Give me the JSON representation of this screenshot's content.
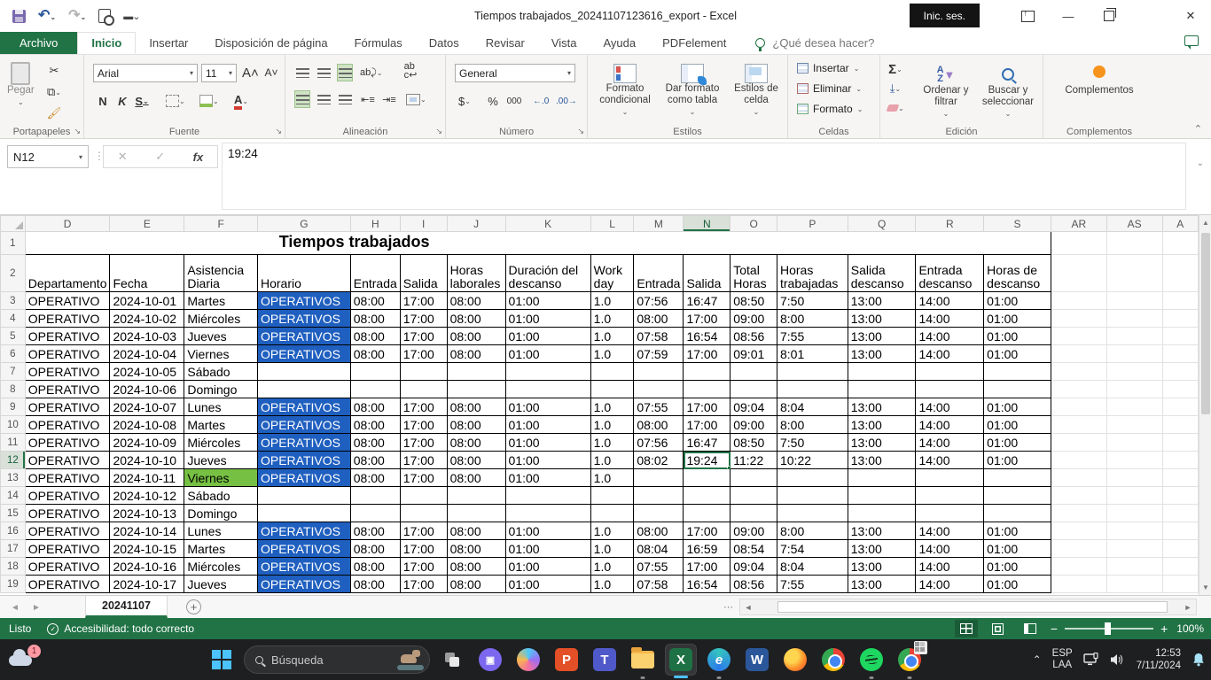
{
  "window": {
    "title": "Tiempos trabajados_20241107123616_export  -  Excel",
    "sign_in": "Inic. ses."
  },
  "ribbon": {
    "tabs": [
      "Archivo",
      "Inicio",
      "Insertar",
      "Disposición de página",
      "Fórmulas",
      "Datos",
      "Revisar",
      "Vista",
      "Ayuda",
      "PDFelement"
    ],
    "active_tab": "Inicio",
    "search_hint": "¿Qué desea hacer?",
    "font_name": "Arial",
    "font_size": "11",
    "number_format": "General",
    "buttons": {
      "paste": "Pegar",
      "conditional_format": "Formato condicional",
      "format_as_table": "Dar formato como tabla",
      "cell_styles": "Estilos de celda",
      "insert": "Insertar",
      "delete": "Eliminar",
      "format": "Formato",
      "sort_filter": "Ordenar y filtrar",
      "find_select": "Buscar y seleccionar",
      "addins": "Complementos"
    },
    "groups": [
      "Portapapeles",
      "Fuente",
      "Alineación",
      "Número",
      "Estilos",
      "Celdas",
      "Edición",
      "Complementos"
    ]
  },
  "formula_bar": {
    "name_box": "N12",
    "value": "19:24"
  },
  "sheet": {
    "columns": [
      "D",
      "E",
      "F",
      "G",
      "H",
      "I",
      "J",
      "K",
      "L",
      "M",
      "N",
      "O",
      "P",
      "Q",
      "R",
      "S",
      "AR",
      "AS",
      "A"
    ],
    "selected_column": "N",
    "selected_row": 12,
    "selected_cell": "N12",
    "title": "Tiempos trabajados",
    "headers": [
      "Departamento",
      "Fecha",
      "Asistencia\nDiaria",
      "Horario",
      "Entrada",
      "Salida",
      "Horas\nlaborales",
      "Duración del\ndescanso",
      "Work\nday",
      "Entrada",
      "Salida",
      "Total\nHoras",
      "Horas\ntrabajadas",
      "Salida\ndescanso",
      "Entrada\ndescanso",
      "Horas de\ndescanso"
    ],
    "highlight": {
      "row": 13,
      "column": "F",
      "value": "Viernes"
    },
    "rows": [
      {
        "n": 3,
        "cells": [
          "OPERATIVO",
          "2024-10-01",
          "Martes",
          "OPERATIVOS",
          "08:00",
          "17:00",
          "08:00",
          "01:00",
          "1.0",
          "07:56",
          "16:47",
          "08:50",
          "7:50",
          "13:00",
          "14:00",
          "01:00"
        ]
      },
      {
        "n": 4,
        "cells": [
          "OPERATIVO",
          "2024-10-02",
          "Miércoles",
          "OPERATIVOS",
          "08:00",
          "17:00",
          "08:00",
          "01:00",
          "1.0",
          "08:00",
          "17:00",
          "09:00",
          "8:00",
          "13:00",
          "14:00",
          "01:00"
        ]
      },
      {
        "n": 5,
        "cells": [
          "OPERATIVO",
          "2024-10-03",
          "Jueves",
          "OPERATIVOS",
          "08:00",
          "17:00",
          "08:00",
          "01:00",
          "1.0",
          "07:58",
          "16:54",
          "08:56",
          "7:55",
          "13:00",
          "14:00",
          "01:00"
        ]
      },
      {
        "n": 6,
        "cells": [
          "OPERATIVO",
          "2024-10-04",
          "Viernes",
          "OPERATIVOS",
          "08:00",
          "17:00",
          "08:00",
          "01:00",
          "1.0",
          "07:59",
          "17:00",
          "09:01",
          "8:01",
          "13:00",
          "14:00",
          "01:00"
        ]
      },
      {
        "n": 7,
        "cells": [
          "OPERATIVO",
          "2024-10-05",
          "Sábado",
          "",
          "",
          "",
          "",
          "",
          "",
          "",
          "",
          "",
          "",
          "",
          "",
          ""
        ]
      },
      {
        "n": 8,
        "cells": [
          "OPERATIVO",
          "2024-10-06",
          "Domingo",
          "",
          "",
          "",
          "",
          "",
          "",
          "",
          "",
          "",
          "",
          "",
          "",
          ""
        ]
      },
      {
        "n": 9,
        "cells": [
          "OPERATIVO",
          "2024-10-07",
          "Lunes",
          "OPERATIVOS",
          "08:00",
          "17:00",
          "08:00",
          "01:00",
          "1.0",
          "07:55",
          "17:00",
          "09:04",
          "8:04",
          "13:00",
          "14:00",
          "01:00"
        ]
      },
      {
        "n": 10,
        "cells": [
          "OPERATIVO",
          "2024-10-08",
          "Martes",
          "OPERATIVOS",
          "08:00",
          "17:00",
          "08:00",
          "01:00",
          "1.0",
          "08:00",
          "17:00",
          "09:00",
          "8:00",
          "13:00",
          "14:00",
          "01:00"
        ]
      },
      {
        "n": 11,
        "cells": [
          "OPERATIVO",
          "2024-10-09",
          "Miércoles",
          "OPERATIVOS",
          "08:00",
          "17:00",
          "08:00",
          "01:00",
          "1.0",
          "07:56",
          "16:47",
          "08:50",
          "7:50",
          "13:00",
          "14:00",
          "01:00"
        ]
      },
      {
        "n": 12,
        "cells": [
          "OPERATIVO",
          "2024-10-10",
          "Jueves",
          "OPERATIVOS",
          "08:00",
          "17:00",
          "08:00",
          "01:00",
          "1.0",
          "08:02",
          "19:24",
          "11:22",
          "10:22",
          "13:00",
          "14:00",
          "01:00"
        ]
      },
      {
        "n": 13,
        "cells": [
          "OPERATIVO",
          "2024-10-11",
          "Viernes",
          "OPERATIVOS",
          "08:00",
          "17:00",
          "08:00",
          "01:00",
          "1.0",
          "",
          "",
          "",
          "",
          "",
          "",
          ""
        ]
      },
      {
        "n": 14,
        "cells": [
          "OPERATIVO",
          "2024-10-12",
          "Sábado",
          "",
          "",
          "",
          "",
          "",
          "",
          "",
          "",
          "",
          "",
          "",
          "",
          ""
        ]
      },
      {
        "n": 15,
        "cells": [
          "OPERATIVO",
          "2024-10-13",
          "Domingo",
          "",
          "",
          "",
          "",
          "",
          "",
          "",
          "",
          "",
          "",
          "",
          "",
          ""
        ]
      },
      {
        "n": 16,
        "cells": [
          "OPERATIVO",
          "2024-10-14",
          "Lunes",
          "OPERATIVOS",
          "08:00",
          "17:00",
          "08:00",
          "01:00",
          "1.0",
          "08:00",
          "17:00",
          "09:00",
          "8:00",
          "13:00",
          "14:00",
          "01:00"
        ]
      },
      {
        "n": 17,
        "cells": [
          "OPERATIVO",
          "2024-10-15",
          "Martes",
          "OPERATIVOS",
          "08:00",
          "17:00",
          "08:00",
          "01:00",
          "1.0",
          "08:04",
          "16:59",
          "08:54",
          "7:54",
          "13:00",
          "14:00",
          "01:00"
        ]
      },
      {
        "n": 18,
        "cells": [
          "OPERATIVO",
          "2024-10-16",
          "Miércoles",
          "OPERATIVOS",
          "08:00",
          "17:00",
          "08:00",
          "01:00",
          "1.0",
          "07:55",
          "17:00",
          "09:04",
          "8:04",
          "13:00",
          "14:00",
          "01:00"
        ]
      },
      {
        "n": 19,
        "cells": [
          "OPERATIVO",
          "2024-10-17",
          "Jueves",
          "OPERATIVOS",
          "08:00",
          "17:00",
          "08:00",
          "01:00",
          "1.0",
          "07:58",
          "16:54",
          "08:56",
          "7:55",
          "13:00",
          "14:00",
          "01:00"
        ]
      }
    ]
  },
  "sheet_tabs": {
    "active": "20241107"
  },
  "status_bar": {
    "mode": "Listo",
    "accessibility": "Accesibilidad: todo correcto",
    "zoom_level": "100%"
  },
  "taskbar": {
    "search_placeholder": "Búsqueda",
    "language_top": "ESP",
    "language_bottom": "LAA",
    "time": "12:53",
    "date": "7/11/2024",
    "weather_badge": "1"
  },
  "colors": {
    "excel_green": "#217346",
    "operativos_fill": "#1f5fbf",
    "friday_highlight": "#76c043",
    "selection_border": "#217346",
    "taskbar_bg": "#1d1f21",
    "active_app_underline": "#4cc2ff"
  }
}
